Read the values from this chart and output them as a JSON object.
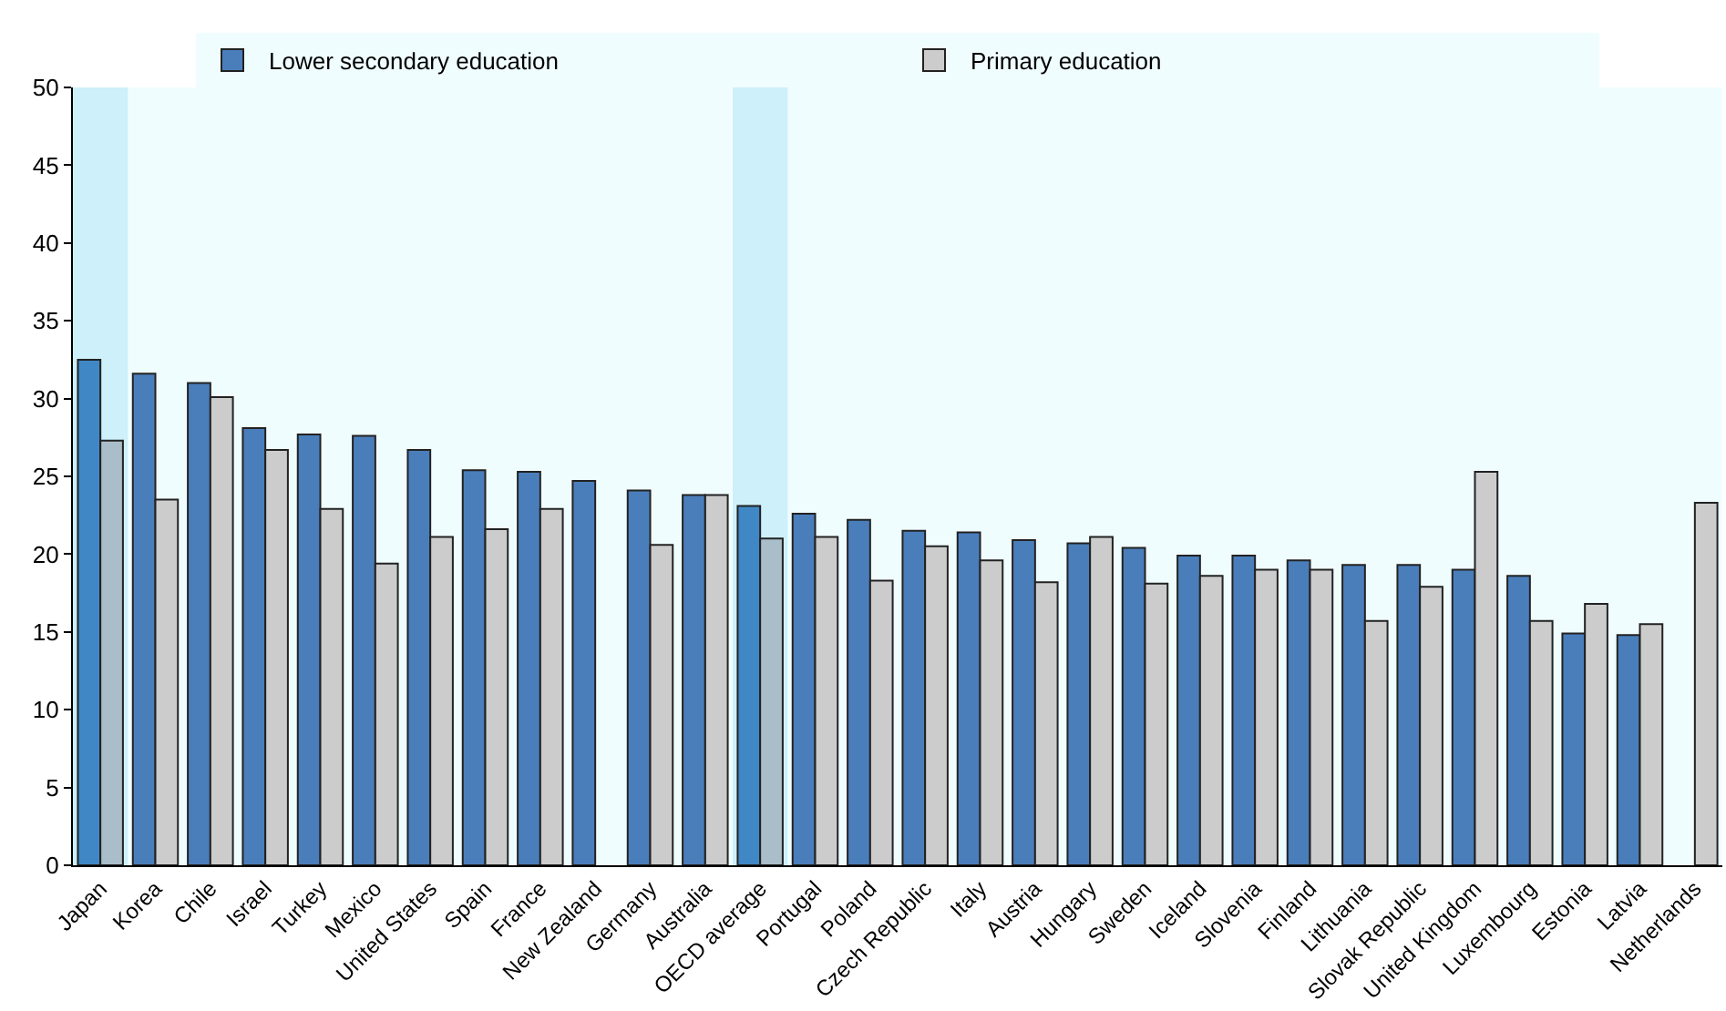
{
  "chart_data": {
    "type": "bar",
    "categories": [
      "Japan",
      "Korea",
      "Chile",
      "Israel",
      "Turkey",
      "Mexico",
      "United States",
      "Spain",
      "France",
      "New Zealand",
      "Germany",
      "Australia",
      "OECD average",
      "Portugal",
      "Poland",
      "Czech Republic",
      "Italy",
      "Austria",
      "Hungary",
      "Sweden",
      "Iceland",
      "Slovenia",
      "Finland",
      "Lithuania",
      "Slovak Republic",
      "United Kingdom",
      "Luxembourg",
      "Estonia",
      "Latvia",
      "Netherlands"
    ],
    "series": [
      {
        "name": "Lower secondary education",
        "color": "#4a7ebb",
        "colors": [
          "#3f88c5",
          "#4a7ebb",
          "#4a7ebb",
          "#4a7ebb",
          "#4a7ebb",
          "#4a7ebb",
          "#4a7ebb",
          "#4a7ebb",
          "#4a7ebb",
          "#4a7ebb",
          "#4a7ebb",
          "#4a7ebb",
          "#3f88c5",
          "#4a7ebb",
          "#4a7ebb",
          "#4a7ebb",
          "#4a7ebb",
          "#4a7ebb",
          "#4a7ebb",
          "#4a7ebb",
          "#4a7ebb",
          "#4a7ebb",
          "#4a7ebb",
          "#4a7ebb",
          "#4a7ebb",
          "#4a7ebb",
          "#4a7ebb",
          "#4a7ebb",
          "#4a7ebb",
          "#4a7ebb"
        ],
        "values": [
          32.5,
          31.6,
          31.0,
          28.1,
          27.7,
          27.6,
          26.7,
          25.4,
          25.3,
          24.7,
          24.1,
          23.8,
          23.1,
          22.6,
          22.2,
          21.5,
          21.4,
          20.9,
          20.7,
          20.4,
          19.9,
          19.9,
          19.6,
          19.3,
          19.3,
          19.0,
          18.6,
          14.9,
          14.8,
          null
        ]
      },
      {
        "name": "Primary education",
        "color": "#cccccc",
        "colors": [
          "#a9bec8",
          "#cccccc",
          "#cccccc",
          "#cccccc",
          "#cccccc",
          "#cccccc",
          "#cccccc",
          "#cccccc",
          "#cccccc",
          "#cccccc",
          "#cccccc",
          "#cccccc",
          "#a9bec8",
          "#cccccc",
          "#cccccc",
          "#cccccc",
          "#cccccc",
          "#cccccc",
          "#cccccc",
          "#cccccc",
          "#cccccc",
          "#cccccc",
          "#cccccc",
          "#cccccc",
          "#cccccc",
          "#cccccc",
          "#cccccc",
          "#cccccc",
          "#cccccc",
          "#cccccc"
        ],
        "values": [
          27.3,
          23.5,
          30.1,
          26.7,
          22.9,
          19.4,
          21.1,
          21.6,
          22.9,
          null,
          20.6,
          23.8,
          21.0,
          21.1,
          18.3,
          20.5,
          19.6,
          18.2,
          21.1,
          18.1,
          18.6,
          19.0,
          19.0,
          15.7,
          17.9,
          25.3,
          15.7,
          16.8,
          15.5,
          23.3
        ]
      }
    ],
    "ylim": [
      0,
      50
    ],
    "yticks": [
      0,
      5,
      10,
      15,
      20,
      25,
      30,
      35,
      40,
      45,
      50
    ],
    "bands": [
      {
        "axis": "x",
        "from": "Japan",
        "to": "Japan",
        "color": "#cdf0fa"
      },
      {
        "axis": "x",
        "from": "OECD average",
        "to": "OECD average",
        "color": "#cdf0fa"
      }
    ],
    "legend": "top",
    "grid": false
  }
}
